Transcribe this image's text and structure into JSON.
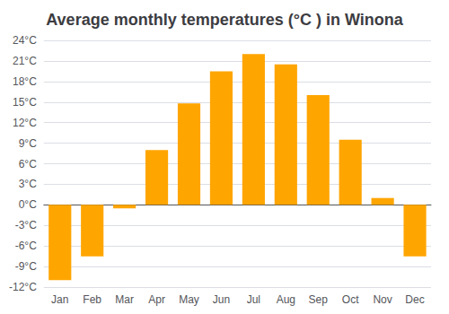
{
  "chart_data": {
    "type": "bar",
    "title": "Average monthly temperatures (°C ) in Winona",
    "categories": [
      "Jan",
      "Feb",
      "Mar",
      "Apr",
      "May",
      "Jun",
      "Jul",
      "Aug",
      "Sep",
      "Oct",
      "Nov",
      "Dec"
    ],
    "values": [
      -11,
      -7.5,
      -0.5,
      8,
      14.8,
      19.5,
      22,
      20.5,
      16,
      9.5,
      1,
      -7.5
    ],
    "color": "#FFA500",
    "ylim": [
      -12,
      24
    ],
    "yticks": [
      {
        "value": -12,
        "label": "-12°C"
      },
      {
        "value": -9,
        "label": "-9°C"
      },
      {
        "value": -6,
        "label": "-6°C"
      },
      {
        "value": -3,
        "label": "-3°C"
      },
      {
        "value": 0,
        "label": "0°C"
      },
      {
        "value": 3,
        "label": "3°C"
      },
      {
        "value": 6,
        "label": "6°C"
      },
      {
        "value": 9,
        "label": "9°C"
      },
      {
        "value": 12,
        "label": "12°C"
      },
      {
        "value": 15,
        "label": "15°C"
      },
      {
        "value": 18,
        "label": "18°C"
      },
      {
        "value": 21,
        "label": "21°C"
      },
      {
        "value": 24,
        "label": "24°C"
      }
    ],
    "grid": true
  }
}
